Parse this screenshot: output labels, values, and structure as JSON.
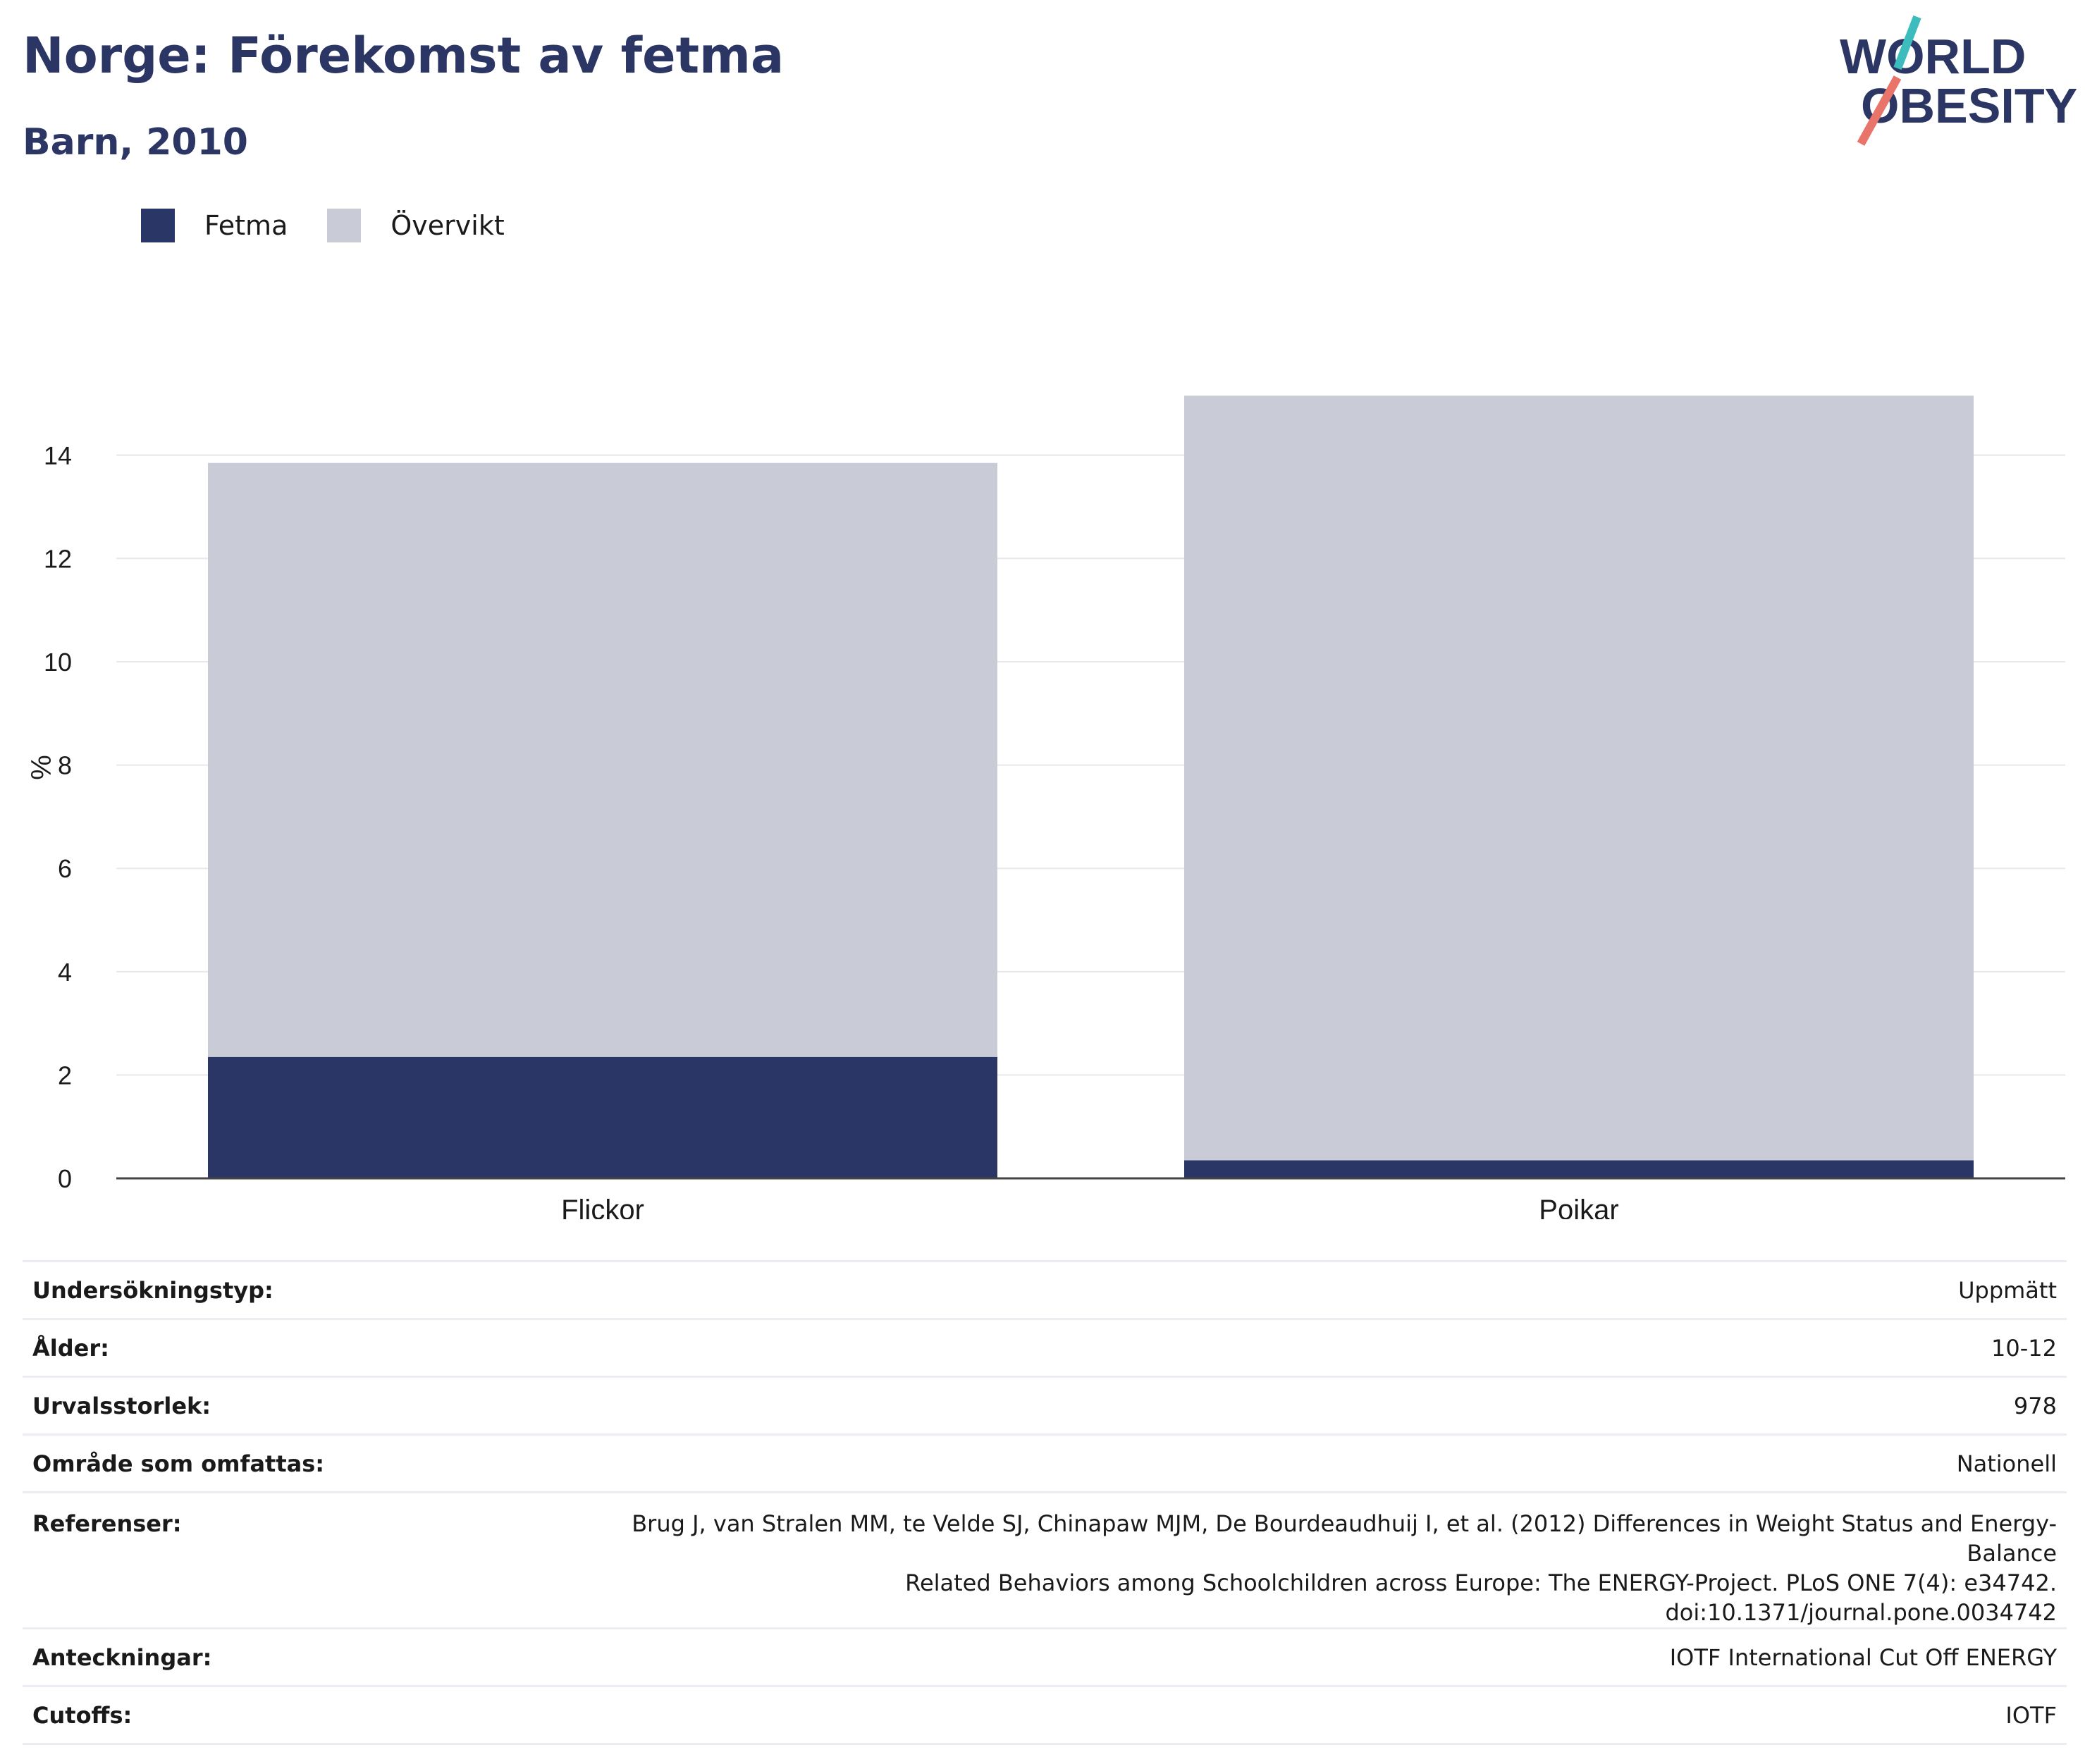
{
  "header": {
    "title": "Norge: Förekomst av fetma",
    "subtitle": "Barn, 2010"
  },
  "logo": {
    "line1": "WORLD",
    "line2": "OBESITY"
  },
  "colors": {
    "fetma": "#2a3665",
    "overvikt": "#c9cbd7",
    "accent_teal": "#3dbcbe",
    "accent_coral": "#e9746a",
    "brand": "#2c3664"
  },
  "chart_data": {
    "type": "bar",
    "stacked": true,
    "categories": [
      "Flickor",
      "Pojkar"
    ],
    "series": [
      {
        "name": "Fetma",
        "values": [
          2.35,
          0.35
        ]
      },
      {
        "name": "Övervikt",
        "values": [
          11.5,
          14.8
        ]
      }
    ],
    "ylabel": "%",
    "xlabel": "",
    "ylim": [
      0,
      15.5
    ],
    "yticks": [
      0,
      2,
      4,
      6,
      8,
      10,
      12,
      14
    ],
    "grid": true,
    "legend_position": "top-left"
  },
  "legend": {
    "items": [
      {
        "label": "Fetma"
      },
      {
        "label": "Övervikt"
      }
    ]
  },
  "info": {
    "rows": [
      {
        "key": "Undersökningstyp:",
        "value": "Uppmätt"
      },
      {
        "key": "Ålder:",
        "value": "10-12"
      },
      {
        "key": "Urvalsstorlek:",
        "value": "978"
      },
      {
        "key": "Område som omfattas:",
        "value": "Nationell"
      },
      {
        "key": "Referenser:",
        "lines": [
          "Brug J, van Stralen MM, te Velde SJ, Chinapaw MJM, De Bourdeaudhuij I, et al. (2012) Differences in Weight Status and Energy-Balance",
          "Related Behaviors among Schoolchildren across Europe: The ENERGY-Project. PLoS ONE 7(4): e34742.",
          "doi:10.1371/journal.pone.0034742"
        ]
      },
      {
        "key": "Anteckningar:",
        "value": "IOTF International Cut Off ENERGY"
      },
      {
        "key": "Cutoffs:",
        "value": "IOTF"
      }
    ]
  }
}
